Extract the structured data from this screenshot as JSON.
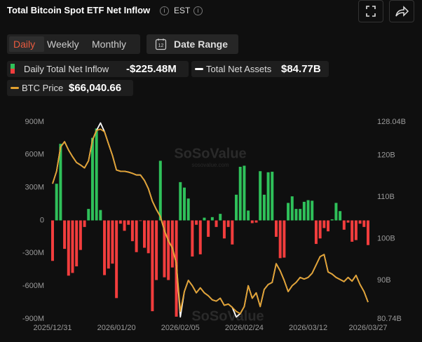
{
  "header": {
    "title": "Total Bitcoin Spot ETF Net Inflow",
    "timezone": "EST",
    "tabs": [
      "Daily",
      "Weekly",
      "Monthly"
    ],
    "date_range": "Date Range",
    "date_range_icon": "12"
  },
  "chart_data": {
    "type": "combo",
    "watermark": "SoSoValue",
    "watermark_url": "sosovalue.com",
    "categories": [
      "2025/12/31",
      null,
      null,
      null,
      null,
      null,
      null,
      null,
      null,
      null,
      null,
      null,
      null,
      null,
      null,
      null,
      "2026/01/20",
      null,
      null,
      null,
      null,
      null,
      null,
      null,
      null,
      null,
      null,
      null,
      null,
      null,
      null,
      null,
      "2026/02/05",
      null,
      null,
      null,
      null,
      null,
      null,
      null,
      null,
      null,
      null,
      null,
      null,
      null,
      null,
      null,
      "2026/02/24",
      null,
      null,
      null,
      null,
      null,
      null,
      null,
      null,
      null,
      null,
      null,
      null,
      null,
      null,
      null,
      "2026/03/12",
      null,
      null,
      null,
      null,
      null,
      null,
      null,
      null,
      null,
      null,
      null,
      null,
      null,
      null,
      "2026/03/27"
    ],
    "series": [
      {
        "name": "Daily Total Net Inflow",
        "type": "bar",
        "color": "#2fc15a",
        "negative_color": "#f23d3d",
        "current_label": "-$225.48M",
        "values": [
          -370,
          335,
          700,
          -260,
          -505,
          -480,
          -420,
          -270,
          -60,
          105,
          755,
          840,
          95,
          -500,
          -440,
          -395,
          -710,
          -30,
          -95,
          -40,
          -190,
          -290,
          -5,
          -250,
          -300,
          -830,
          -545,
          545,
          -520,
          -545,
          -430,
          -880,
          350,
          300,
          200,
          -330,
          -40,
          -310,
          25,
          -150,
          30,
          -60,
          60,
          -165,
          -60,
          -220,
          235,
          490,
          500,
          90,
          -25,
          -20,
          450,
          235,
          440,
          445,
          -150,
          -345,
          -340,
          160,
          220,
          105,
          105,
          170,
          185,
          180,
          -215,
          -165,
          -70,
          -100,
          10,
          160,
          85,
          -85,
          -20,
          -195,
          -180,
          -30,
          -60,
          -225.48
        ]
      },
      {
        "name": "Total Net Assets",
        "type": "line",
        "axis": "y2",
        "color": "#ffffff",
        "current_label": "$84.77B",
        "values": [
          113.2,
          116.2,
          122.0,
          123.3,
          121.3,
          119.7,
          118.3,
          117.7,
          117.0,
          118.7,
          123.7,
          126.0,
          127.8,
          125.7,
          122.8,
          120.0,
          116.5,
          116.2,
          116.2,
          116.0,
          115.7,
          115.3,
          115.3,
          114.0,
          112.0,
          109.0,
          107.0,
          105.3,
          102.0,
          99.5,
          97.8,
          94.0,
          81.2,
          87.3,
          90.0,
          88.7,
          87.0,
          88.2,
          87.0,
          86.3,
          85.3,
          85.0,
          85.7,
          84.0,
          84.3,
          83.5,
          81.2,
          82.0,
          83.7,
          88.7,
          85.7,
          87.0,
          83.7,
          87.8,
          89.0,
          89.5,
          94.0,
          92.3,
          90.0,
          87.3,
          88.7,
          89.5,
          90.7,
          90.3,
          90.7,
          91.7,
          93.7,
          95.7,
          96.2,
          92.0,
          91.5,
          90.7,
          90.2,
          89.7,
          90.7,
          89.8,
          91.2,
          89.0,
          87.3,
          84.77
        ]
      },
      {
        "name": "BTC Price",
        "type": "line",
        "axis": "y3",
        "color": "#e3a12f",
        "current_label": "$66,040.66",
        "values": [
          88200,
          90520,
          95040,
          96050,
          94490,
          93250,
          92160,
          91690,
          91140,
          92470,
          96360,
          98150,
          98400,
          97920,
          95660,
          93480,
          90750,
          90520,
          90520,
          90360,
          90130,
          89820,
          89820,
          88810,
          87250,
          84910,
          83350,
          82030,
          79460,
          77510,
          76190,
          73230,
          64300,
          68010,
          70110,
          69100,
          67770,
          68710,
          67770,
          67230,
          66450,
          66220,
          66760,
          65440,
          65670,
          65050,
          64300,
          63880,
          65200,
          69100,
          66760,
          67770,
          65200,
          68400,
          69330,
          69720,
          73230,
          71900,
          70110,
          68010,
          69100,
          69720,
          70650,
          70340,
          70650,
          71430,
          72990,
          74550,
          74940,
          71670,
          71280,
          70650,
          70270,
          69880,
          70650,
          69950,
          71040,
          69330,
          68010,
          66040.66
        ]
      }
    ],
    "ylim": [
      -900,
      900
    ],
    "yticks": [
      {
        "value": -900,
        "label": "-900M"
      },
      {
        "value": -600,
        "label": "-600M"
      },
      {
        "value": -300,
        "label": "-300M"
      },
      0,
      {
        "value": 300,
        "label": "300M"
      },
      {
        "value": 600,
        "label": "600M"
      },
      {
        "value": 900,
        "label": "900M"
      }
    ],
    "y2lim": [
      80.74,
      128.04
    ],
    "y2ticks": [
      {
        "value": 80.74,
        "label": "80.74B"
      },
      {
        "value": 90,
        "label": "90B"
      },
      {
        "value": 100,
        "label": "100B"
      },
      {
        "value": 110,
        "label": "110B"
      },
      {
        "value": 120,
        "label": "120B"
      },
      {
        "value": 128.04,
        "label": "128.04B"
      }
    ],
    "y3lim": [
      62900,
      99750
    ],
    "grid": false
  }
}
